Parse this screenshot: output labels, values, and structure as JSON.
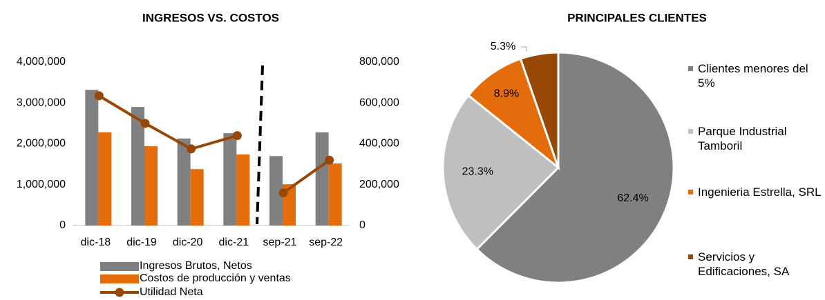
{
  "chart_data": [
    {
      "type": "bar_line",
      "title": "INGRESOS VS. COSTOS",
      "categories": [
        "dic-18",
        "dic-19",
        "dic-20",
        "dic-21",
        "sep-21",
        "sep-22"
      ],
      "series": [
        {
          "name": "Ingresos Brutos, Netos",
          "color": "#808080",
          "type": "bar",
          "values": [
            3320000,
            2900000,
            2130000,
            2260000,
            1700000,
            2280000
          ]
        },
        {
          "name": "Costos de producción y ventas",
          "color": "#e46c0a",
          "type": "bar",
          "values": [
            2280000,
            1940000,
            1380000,
            1740000,
            1010000,
            1520000
          ]
        },
        {
          "name": "Utilidad Neta",
          "color": "#974706",
          "type": "line",
          "axis": "y2",
          "values": [
            635000,
            500000,
            375000,
            440000,
            160000,
            320000
          ]
        }
      ],
      "ylim": [
        0,
        4000000
      ],
      "yticks": [
        0,
        {
          "value": 1000000,
          "label": "1,000,000"
        },
        {
          "value": 2000000,
          "label": "2,000,000"
        },
        {
          "value": 3000000,
          "label": "3,000,000"
        },
        {
          "value": 4000000,
          "label": "4,000,000"
        }
      ],
      "y2lim": [
        0,
        800000
      ],
      "y2ticks": [
        0,
        {
          "value": 200000,
          "label": "200,000"
        },
        {
          "value": 400000,
          "label": "400,000"
        },
        {
          "value": 600000,
          "label": "600,000"
        },
        {
          "value": 800000,
          "label": "800,000"
        }
      ],
      "legend": "bottom"
    },
    {
      "type": "pie",
      "title": "PRINCIPALES CLIENTES",
      "categories": [
        "Clientes menores del 5%",
        "Parque Industrial Tamboril",
        "Ingenieria Estrella, SRL",
        "Servicios y Edificaciones, SA"
      ],
      "values": [
        62.4,
        23.3,
        8.9,
        5.3
      ],
      "value_labels": [
        "62.4%",
        "23.3%",
        "8.9%",
        "5.3%"
      ],
      "colors": [
        "#808080",
        "#bfbfbf",
        "#e46c0a",
        "#974706"
      ],
      "legend": "right"
    }
  ]
}
